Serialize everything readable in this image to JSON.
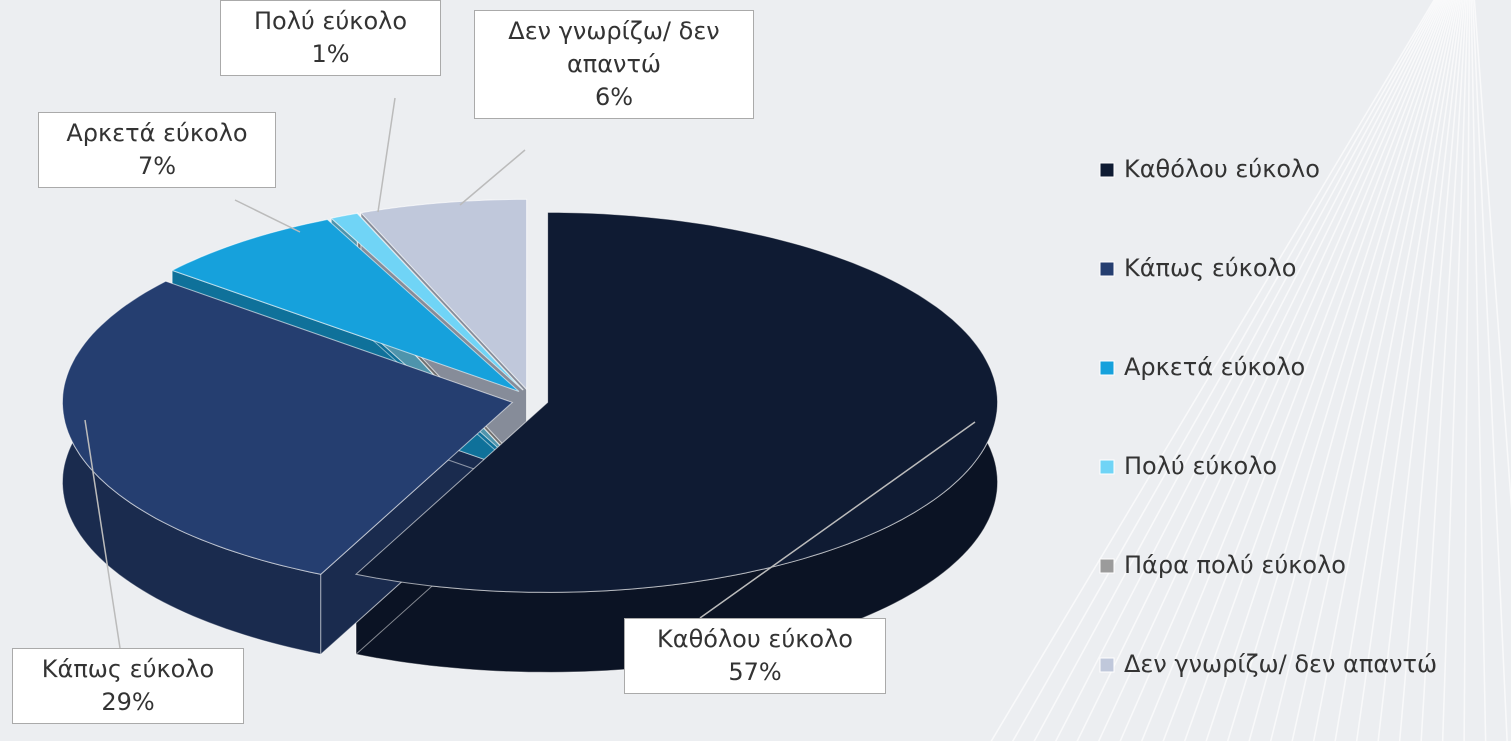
{
  "chart_data": {
    "type": "pie",
    "categories": [
      "Καθόλου εύκολο",
      "Κάπως εύκολο",
      "Αρκετά εύκολο",
      "Πολύ εύκολο",
      "Πάρα πολύ εύκολο",
      "Δεν γνωρίζω/ δεν απαντώ"
    ],
    "values": [
      57,
      29,
      7,
      1,
      0,
      6
    ],
    "value_labels": [
      "57%",
      "29%",
      "7%",
      "1%",
      null,
      "6%"
    ],
    "colors": [
      "#0f1b33",
      "#253e70",
      "#16a1dc",
      "#70d4f6",
      "#9b9b9b",
      "#c0c8db"
    ],
    "legend": "right"
  }
}
